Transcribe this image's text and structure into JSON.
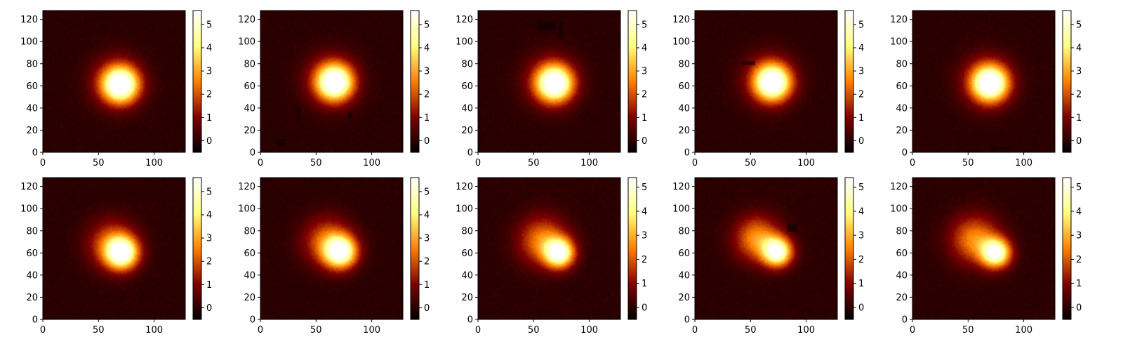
{
  "chart_data": {
    "type": "heatmap",
    "colormap": "afmhot",
    "background_color": "#000000",
    "grid": false,
    "layout": {
      "rows": 2,
      "cols": 5
    },
    "x_range": [
      0,
      128
    ],
    "y_range": [
      0,
      128
    ],
    "x_ticks": [
      0,
      50,
      100
    ],
    "y_ticks": [
      0,
      20,
      40,
      60,
      80,
      100,
      120
    ],
    "panels": [
      {
        "row": 0,
        "col": 0,
        "vmin": -0.5,
        "vmax": 5.6,
        "colorbar_ticks": [
          0,
          1,
          2,
          3,
          4,
          5
        ],
        "blobs": [
          {
            "x": 70,
            "y": 61,
            "sigma": 11,
            "amp": 5.6
          },
          {
            "x": 66,
            "y": 64,
            "sigma": 16,
            "amp": 1.6
          }
        ],
        "masks": []
      },
      {
        "row": 0,
        "col": 1,
        "vmin": -0.5,
        "vmax": 5.6,
        "colorbar_ticks": [
          0,
          1,
          2,
          3,
          4,
          5
        ],
        "blobs": [
          {
            "x": 67,
            "y": 63,
            "sigma": 11,
            "amp": 5.6
          },
          {
            "x": 63,
            "y": 66,
            "sigma": 16,
            "amp": 1.6
          }
        ],
        "masks": [
          {
            "x0": 15,
            "y0": 5,
            "x1": 22,
            "y1": 12
          },
          {
            "x0": 33,
            "y0": 28,
            "x1": 36,
            "y1": 40
          },
          {
            "x0": 79,
            "y0": 30,
            "x1": 82,
            "y1": 36
          }
        ]
      },
      {
        "row": 0,
        "col": 2,
        "vmin": -0.5,
        "vmax": 5.6,
        "colorbar_ticks": [
          0,
          1,
          2,
          3,
          4,
          5
        ],
        "blobs": [
          {
            "x": 69,
            "y": 62,
            "sigma": 11,
            "amp": 5.6
          },
          {
            "x": 65,
            "y": 65,
            "sigma": 16,
            "amp": 1.6
          }
        ],
        "masks": [
          {
            "x0": 53,
            "y0": 110,
            "x1": 70,
            "y1": 118
          },
          {
            "x0": 72,
            "y0": 102,
            "x1": 76,
            "y1": 118
          }
        ]
      },
      {
        "row": 0,
        "col": 3,
        "vmin": -0.5,
        "vmax": 5.6,
        "colorbar_ticks": [
          0,
          1,
          2,
          3,
          4,
          5
        ],
        "blobs": [
          {
            "x": 70,
            "y": 63,
            "sigma": 11,
            "amp": 5.6
          },
          {
            "x": 66,
            "y": 66,
            "sigma": 16,
            "amp": 1.6
          }
        ],
        "masks": [
          {
            "x0": 41,
            "y0": 79,
            "x1": 54,
            "y1": 82
          }
        ]
      },
      {
        "row": 0,
        "col": 4,
        "vmin": -0.5,
        "vmax": 5.6,
        "colorbar_ticks": [
          0,
          1,
          2,
          3,
          4,
          5
        ],
        "blobs": [
          {
            "x": 70,
            "y": 62,
            "sigma": 11,
            "amp": 5.6
          },
          {
            "x": 66,
            "y": 65,
            "sigma": 16,
            "amp": 1.6
          }
        ],
        "masks": [
          {
            "x0": 70,
            "y0": 3,
            "x1": 90,
            "y1": 5
          }
        ]
      },
      {
        "row": 1,
        "col": 0,
        "vmin": -0.5,
        "vmax": 5.6,
        "colorbar_ticks": [
          0,
          1,
          2,
          3,
          4,
          5
        ],
        "blobs": [
          {
            "x": 71,
            "y": 60,
            "sigma": 10,
            "amp": 5.4
          },
          {
            "x": 62,
            "y": 68,
            "sigma": 15,
            "amp": 2.2
          }
        ],
        "masks": []
      },
      {
        "row": 1,
        "col": 1,
        "vmin": -0.5,
        "vmax": 5.6,
        "colorbar_ticks": [
          0,
          1,
          2,
          3,
          4,
          5
        ],
        "blobs": [
          {
            "x": 72,
            "y": 61,
            "sigma": 10,
            "amp": 5.4
          },
          {
            "x": 60,
            "y": 70,
            "sigma": 15,
            "amp": 2.3
          }
        ],
        "masks": []
      },
      {
        "row": 1,
        "col": 2,
        "vmin": -0.5,
        "vmax": 5.4,
        "colorbar_ticks": [
          0,
          1,
          2,
          3,
          4,
          5
        ],
        "blobs": [
          {
            "x": 73,
            "y": 60,
            "sigma": 9,
            "amp": 5.3
          },
          {
            "x": 58,
            "y": 71,
            "sigma": 15,
            "amp": 2.5
          }
        ],
        "masks": []
      },
      {
        "row": 1,
        "col": 3,
        "vmin": -0.5,
        "vmax": 5.4,
        "colorbar_ticks": [
          0,
          1,
          2,
          3,
          4,
          5
        ],
        "blobs": [
          {
            "x": 74,
            "y": 61,
            "sigma": 9,
            "amp": 5.3
          },
          {
            "x": 56,
            "y": 73,
            "sigma": 14,
            "amp": 2.7
          }
        ],
        "masks": [
          {
            "x0": 83,
            "y0": 79,
            "x1": 92,
            "y1": 86
          }
        ]
      },
      {
        "row": 1,
        "col": 4,
        "vmin": -0.5,
        "vmax": 5.4,
        "colorbar_ticks": [
          0,
          1,
          2,
          3,
          4,
          5
        ],
        "blobs": [
          {
            "x": 75,
            "y": 60,
            "sigma": 9,
            "amp": 5.2
          },
          {
            "x": 56,
            "y": 72,
            "sigma": 15,
            "amp": 2.6
          }
        ],
        "masks": []
      }
    ]
  }
}
